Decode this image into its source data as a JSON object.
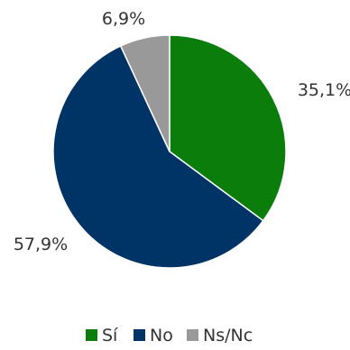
{
  "chart_data": {
    "type": "pie",
    "categories": [
      "Sí",
      "No",
      "Ns/Nc"
    ],
    "values": [
      35.1,
      57.9,
      6.9
    ],
    "data_labels": [
      "35,1%",
      "57,9%",
      "6,9%"
    ],
    "colors": [
      "#0a7d0a",
      "#003366",
      "#999999"
    ],
    "start": "12 o'clock",
    "direction": "clockwise",
    "legend_position": "bottom-center"
  }
}
